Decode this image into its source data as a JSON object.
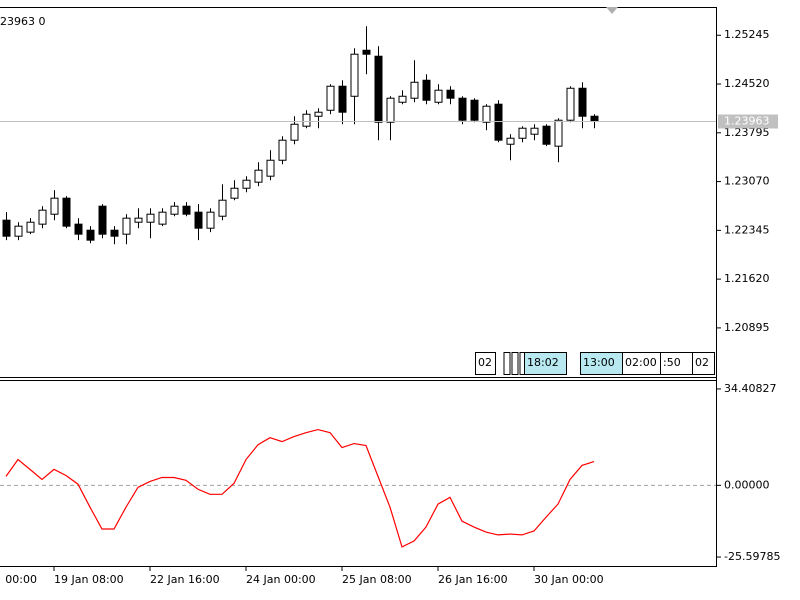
{
  "info_text": "23963 0",
  "chart_data": [
    {
      "type": "candlestick",
      "open": [
        1.22496,
        1.22258,
        1.22318,
        1.22437,
        1.22585,
        1.22823,
        1.22437,
        1.22347,
        1.22704,
        1.22347,
        1.22288,
        1.22466,
        1.22466,
        1.22437,
        1.22585,
        1.22704,
        1.22615,
        1.22377,
        1.22555,
        1.22823,
        1.22971,
        1.23061,
        1.2315,
        1.23387,
        1.23685,
        1.23893,
        1.24041,
        1.2413,
        1.24487,
        1.24338,
        1.25022,
        1.24933,
        1.23952,
        1.24249,
        1.24309,
        1.24576,
        1.24249,
        1.24428,
        1.24309,
        1.24279,
        1.23952,
        1.2422,
        1.23625,
        1.23714,
        1.23774,
        1.23893,
        1.23596,
        1.23982,
        1.24457,
        1.24041
      ],
      "high": [
        1.22615,
        1.22466,
        1.22526,
        1.22704,
        1.22942,
        1.22853,
        1.22526,
        1.22407,
        1.22734,
        1.22407,
        1.22585,
        1.22674,
        1.22674,
        1.22674,
        1.22764,
        1.22764,
        1.22734,
        1.22674,
        1.23031,
        1.2309,
        1.2315,
        1.23358,
        1.23536,
        1.23744,
        1.24041,
        1.2413,
        1.2416,
        1.24517,
        1.24576,
        1.25052,
        1.25379,
        1.25081,
        1.24338,
        1.24428,
        1.24873,
        1.24665,
        1.24517,
        1.24487,
        1.24338,
        1.24309,
        1.2422,
        1.24279,
        1.23774,
        1.23893,
        1.23922,
        1.23922,
        1.24012,
        1.24487,
        1.24546,
        1.24071
      ],
      "low": [
        1.22199,
        1.22199,
        1.22288,
        1.22377,
        1.22496,
        1.22377,
        1.22199,
        1.22154,
        1.22228,
        1.22139,
        1.22139,
        1.22377,
        1.22228,
        1.22407,
        1.22555,
        1.22555,
        1.22199,
        1.22318,
        1.22496,
        1.22793,
        1.22912,
        1.23001,
        1.2309,
        1.23328,
        1.23625,
        1.23863,
        1.23863,
        1.24071,
        1.23922,
        1.23922,
        1.24665,
        1.23685,
        1.23685,
        1.2422,
        1.24249,
        1.2422,
        1.2422,
        1.2422,
        1.23922,
        1.23952,
        1.23833,
        1.23655,
        1.23387,
        1.23655,
        1.23685,
        1.23596,
        1.23358,
        1.23952,
        1.23863,
        1.23863
      ],
      "close": [
        1.22258,
        1.22407,
        1.22466,
        1.22645,
        1.22823,
        1.22407,
        1.22288,
        1.22199,
        1.22288,
        1.22258,
        1.22526,
        1.22526,
        1.22585,
        1.22615,
        1.22704,
        1.22585,
        1.22377,
        1.22615,
        1.22793,
        1.22971,
        1.2309,
        1.23239,
        1.23387,
        1.23685,
        1.23922,
        1.24071,
        1.24101,
        1.24487,
        1.24101,
        1.24963,
        1.24963,
        1.23952,
        1.24309,
        1.24338,
        1.24546,
        1.24279,
        1.24428,
        1.24309,
        1.23982,
        1.23982,
        1.2419,
        1.23685,
        1.23714,
        1.23863,
        1.23863,
        1.23625,
        1.23982,
        1.24457,
        1.24041,
        1.23963
      ],
      "up_color": "#ffffff",
      "down_color": "#000000",
      "ylim": [
        1.2018,
        1.2565
      ],
      "yticks": [
        {
          "value": 1.20895,
          "label": "1.20895"
        },
        {
          "value": 1.2162,
          "label": "1.21620"
        },
        {
          "value": 1.22345,
          "label": "1.22345"
        },
        {
          "value": 1.2307,
          "label": "1.23070"
        },
        {
          "value": 1.23795,
          "label": "1.23795"
        },
        {
          "value": 1.2452,
          "label": "1.24520"
        },
        {
          "value": 1.25245,
          "label": "1.25245"
        }
      ],
      "current_price": 1.23963,
      "time_markers": [
        "02",
        "18:02",
        "13:00",
        "02:00",
        ":50",
        "02"
      ]
    },
    {
      "type": "line",
      "categories": [
        null,
        null,
        null,
        null,
        "19 Jan 08:00",
        null,
        null,
        null,
        null,
        null,
        null,
        null,
        "22 Jan 16:00",
        null,
        null,
        null,
        null,
        null,
        null,
        null,
        "24 Jan 00:00",
        null,
        null,
        null,
        null,
        null,
        null,
        null,
        "25 Jan 08:00",
        null,
        null,
        null,
        null,
        null,
        null,
        null,
        "26 Jan 16:00",
        null,
        null,
        null,
        null,
        null,
        null,
        null,
        "30 Jan 00:00",
        null,
        null,
        null,
        null,
        null
      ],
      "left_label": "00:00",
      "series": [
        {
          "color": "#ff0000",
          "values": [
            3.2,
            9.2,
            5.7,
            2.1,
            5.7,
            3.5,
            0.4,
            -7.8,
            -15.6,
            -15.6,
            -7.8,
            -0.7,
            1.4,
            2.8,
            2.8,
            1.8,
            -1.4,
            -3.2,
            -3.2,
            0.7,
            9.2,
            14.5,
            17.0,
            15.6,
            17.4,
            18.8,
            19.9,
            18.8,
            13.5,
            14.9,
            14.2,
            3.2,
            -7.8,
            -22.0,
            -19.9,
            -14.9,
            -6.7,
            -4.3,
            -12.8,
            -14.9,
            -16.7,
            -17.7,
            -17.4,
            -17.7,
            -16.3,
            -11.4,
            -6.7,
            2.1,
            7.1,
            8.5
          ]
        }
      ],
      "ylim": [
        -28.8,
        37.6
      ],
      "yticks": [
        -25.59785,
        {
          "value": 0,
          "label": "0.00000"
        },
        34.40827
      ],
      "level_line": true
    }
  ]
}
